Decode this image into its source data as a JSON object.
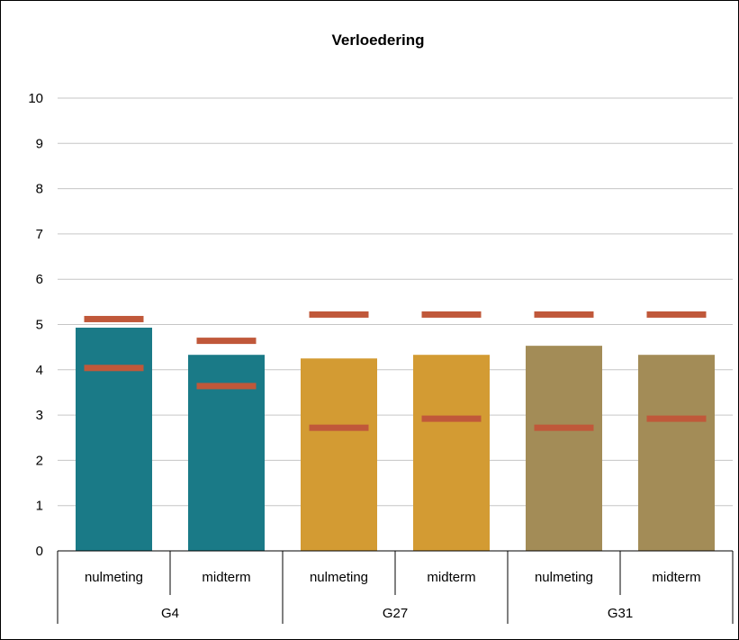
{
  "chart_data": {
    "type": "bar",
    "title": "Verloedering",
    "ylim": [
      0,
      10
    ],
    "yticks": [
      0,
      1,
      2,
      3,
      4,
      5,
      6,
      7,
      8,
      9,
      10
    ],
    "grid": true,
    "groups": [
      {
        "name": "G4",
        "color": "#1a7a87",
        "bars": [
          {
            "label": "nulmeting",
            "value": 4.93,
            "markers": [
              5.12,
              4.04
            ]
          },
          {
            "label": "midterm",
            "value": 4.33,
            "markers": [
              4.64,
              3.64
            ]
          }
        ]
      },
      {
        "name": "G27",
        "color": "#d39b33",
        "bars": [
          {
            "label": "nulmeting",
            "value": 4.25,
            "markers": [
              5.22,
              2.72
            ]
          },
          {
            "label": "midterm",
            "value": 4.33,
            "markers": [
              5.22,
              2.92
            ]
          }
        ]
      },
      {
        "name": "G31",
        "color": "#a38c57",
        "bars": [
          {
            "label": "nulmeting",
            "value": 4.53,
            "markers": [
              5.22,
              2.72
            ]
          },
          {
            "label": "midterm",
            "value": 4.33,
            "markers": [
              5.22,
              2.92
            ]
          }
        ]
      }
    ],
    "marker_color": "#c0583a"
  }
}
